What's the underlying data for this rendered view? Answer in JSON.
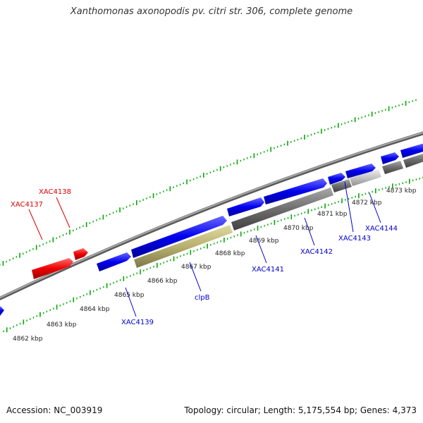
{
  "title": "Xanthomonas axonopodis pv. citri str. 306, complete genome",
  "footer": {
    "accession": "Accession: NC_003919",
    "topology": "Topology: circular; Length: 5,175,554 bp; Genes: 4,373"
  },
  "colors": {
    "forward_gene": "#0000ee",
    "reverse_gene": "#ff0000",
    "highlighted_gene": "#b8b070",
    "gray_gene": "#707070",
    "light_gray_gene": "#c4c4c4",
    "backbone": "#888888",
    "tick": "#00aa00",
    "forward_label": "#0000cc",
    "reverse_label": "#dd0000"
  },
  "kbp_labels": [
    "4862 kbp",
    "4863 kbp",
    "4864 kbp",
    "4865 kbp",
    "4866 kbp",
    "4867 kbp",
    "4868 kbp",
    "4869 kbp",
    "4870 kbp",
    "4871 kbp",
    "4872 kbp",
    "4873 kbp"
  ],
  "gene_labels": {
    "XAC4137": "XAC4137",
    "XAC4138": "XAC4138",
    "XAC4139": "XAC4139",
    "clpB": "clpB",
    "XAC4141": "XAC4141",
    "XAC4142": "XAC4142",
    "XAC4143": "XAC4143",
    "XAC4144": "XAC4144"
  }
}
